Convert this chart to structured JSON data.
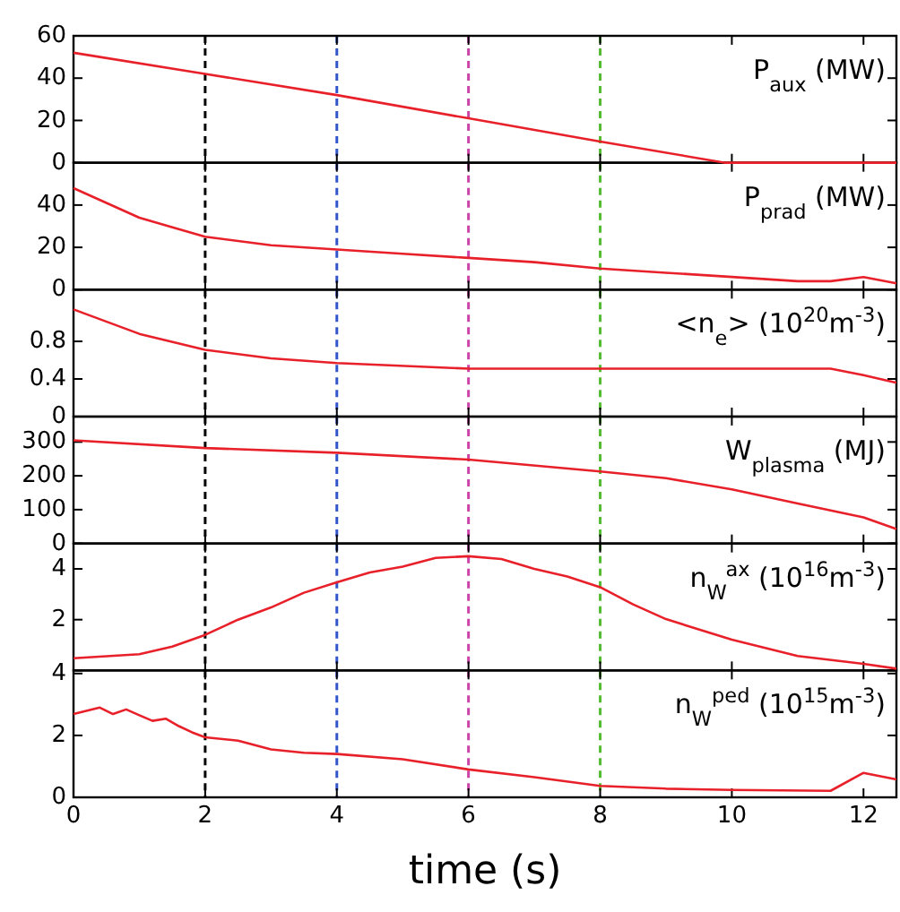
{
  "chart_data": [
    {
      "type": "line",
      "title": "P$_{aux}$ (MW)",
      "x": [
        0,
        2,
        4,
        6,
        8,
        9.9,
        12.5
      ],
      "series": [
        {
          "color": "#e8202a",
          "values": [
            52,
            42,
            32,
            21,
            10,
            0,
            0
          ]
        }
      ],
      "xlim": [
        0,
        12.5
      ],
      "xticks": [
        0,
        2,
        4,
        6,
        8,
        10,
        12
      ],
      "ylim": [
        0,
        60
      ],
      "yticks": [
        0,
        20,
        40,
        60
      ],
      "tick_labels": "y",
      "ref_lines": [
        {
          "axis": "x",
          "value": 2,
          "color": "#000000",
          "line_style": "dashed"
        },
        {
          "axis": "x",
          "value": 4,
          "color": "#3355cc",
          "line_style": "dashed"
        },
        {
          "axis": "x",
          "value": 6,
          "color": "#cc44aa",
          "line_style": "dashed"
        },
        {
          "axis": "x",
          "value": 8,
          "color": "#55bb33",
          "line_style": "dashed"
        }
      ]
    },
    {
      "type": "line",
      "title": "P$_{prad}$ (MW)",
      "x": [
        0,
        1,
        2,
        3,
        4,
        5,
        6,
        7,
        8,
        9,
        10,
        11,
        11.5,
        12,
        12.5
      ],
      "series": [
        {
          "color": "#e8202a",
          "values": [
            48,
            34,
            25,
            21,
            19,
            17,
            15,
            13,
            10,
            8,
            6,
            4,
            4,
            6,
            3
          ]
        }
      ],
      "xlim": [
        0,
        12.5
      ],
      "xticks": [
        0,
        2,
        4,
        6,
        8,
        10,
        12
      ],
      "ylim": [
        0,
        60
      ],
      "yticks": [
        0,
        20,
        40
      ],
      "tick_labels": "y",
      "ref_lines": [
        {
          "axis": "x",
          "value": 2,
          "color": "#000000",
          "line_style": "dashed"
        },
        {
          "axis": "x",
          "value": 4,
          "color": "#3355cc",
          "line_style": "dashed"
        },
        {
          "axis": "x",
          "value": 6,
          "color": "#cc44aa",
          "line_style": "dashed"
        },
        {
          "axis": "x",
          "value": 8,
          "color": "#55bb33",
          "line_style": "dashed"
        }
      ]
    },
    {
      "type": "line",
      "title": "<n$_{e}$> (10$^{20}$m$^{-3}$)",
      "x": [
        0,
        1,
        2,
        3,
        4,
        6,
        8,
        10,
        11.5,
        12,
        12.5
      ],
      "series": [
        {
          "color": "#e8202a",
          "values": [
            1.14,
            0.88,
            0.71,
            0.62,
            0.57,
            0.51,
            0.51,
            0.51,
            0.51,
            0.44,
            0.36
          ]
        }
      ],
      "xlim": [
        0,
        12.5
      ],
      "xticks": [
        0,
        2,
        4,
        6,
        8,
        10,
        12
      ],
      "ylim": [
        0,
        1.35
      ],
      "yticks": [
        0,
        0.4,
        0.8
      ],
      "tick_labels": "y",
      "ref_lines": [
        {
          "axis": "x",
          "value": 2,
          "color": "#000000",
          "line_style": "dashed"
        },
        {
          "axis": "x",
          "value": 4,
          "color": "#3355cc",
          "line_style": "dashed"
        },
        {
          "axis": "x",
          "value": 6,
          "color": "#cc44aa",
          "line_style": "dashed"
        },
        {
          "axis": "x",
          "value": 8,
          "color": "#55bb33",
          "line_style": "dashed"
        }
      ]
    },
    {
      "type": "line",
      "title": "W$_{plasma}$ (MJ)",
      "x": [
        0,
        2,
        4,
        6,
        8,
        9,
        10,
        11,
        12,
        12.5
      ],
      "series": [
        {
          "color": "#e8202a",
          "values": [
            305,
            282,
            268,
            248,
            213,
            193,
            160,
            118,
            77,
            43
          ]
        }
      ],
      "xlim": [
        0,
        12.5
      ],
      "xticks": [
        0,
        2,
        4,
        6,
        8,
        10,
        12
      ],
      "ylim": [
        0,
        375
      ],
      "yticks": [
        0,
        100,
        200,
        300
      ],
      "tick_labels": "y",
      "ref_lines": [
        {
          "axis": "x",
          "value": 2,
          "color": "#000000",
          "line_style": "dashed"
        },
        {
          "axis": "x",
          "value": 4,
          "color": "#3355cc",
          "line_style": "dashed"
        },
        {
          "axis": "x",
          "value": 6,
          "color": "#cc44aa",
          "line_style": "dashed"
        },
        {
          "axis": "x",
          "value": 8,
          "color": "#55bb33",
          "line_style": "dashed"
        }
      ]
    },
    {
      "type": "line",
      "title": "n$_{W}$$^{ax}$ (10$^{16}$m$^{-3}$)",
      "x": [
        0,
        1,
        1.5,
        2,
        2.5,
        3,
        3.5,
        4,
        4.5,
        5,
        5.5,
        6,
        6.5,
        7,
        7.5,
        8,
        8.5,
        9,
        10,
        11,
        12,
        12.5
      ],
      "series": [
        {
          "color": "#e8202a",
          "values": [
            0.48,
            0.64,
            0.94,
            1.4,
            2.0,
            2.48,
            3.06,
            3.47,
            3.86,
            4.09,
            4.43,
            4.5,
            4.39,
            4.0,
            3.7,
            3.28,
            2.6,
            2.02,
            1.21,
            0.57,
            0.26,
            0.07
          ]
        }
      ],
      "xlim": [
        0,
        12.5
      ],
      "xticks": [
        0,
        2,
        4,
        6,
        8,
        10,
        12
      ],
      "ylim": [
        0,
        5
      ],
      "yticks": [
        {
          "value": 0,
          "label": null
        },
        2,
        4
      ],
      "tick_labels": "y",
      "ref_lines": [
        {
          "axis": "x",
          "value": 2,
          "color": "#000000",
          "line_style": "dashed"
        },
        {
          "axis": "x",
          "value": 4,
          "color": "#3355cc",
          "line_style": "dashed"
        },
        {
          "axis": "x",
          "value": 6,
          "color": "#cc44aa",
          "line_style": "dashed"
        },
        {
          "axis": "x",
          "value": 8,
          "color": "#55bb33",
          "line_style": "dashed"
        }
      ]
    },
    {
      "type": "line",
      "title": "n$_{W}$$^{ped}$ (10$^{15}$m$^{-3}$)",
      "xlabel": "time (s)",
      "x": [
        0,
        0.4,
        0.6,
        0.8,
        1,
        1.2,
        1.4,
        1.6,
        1.8,
        2,
        2.5,
        3,
        3.5,
        4,
        5,
        6,
        7,
        8,
        9,
        10,
        11.5,
        12,
        12.5
      ],
      "series": [
        {
          "color": "#e8202a",
          "values": [
            2.69,
            2.9,
            2.69,
            2.84,
            2.65,
            2.47,
            2.54,
            2.3,
            2.1,
            1.94,
            1.83,
            1.55,
            1.44,
            1.4,
            1.23,
            0.9,
            0.65,
            0.37,
            0.28,
            0.24,
            0.21,
            0.79,
            0.58
          ]
        }
      ],
      "xlim": [
        0,
        12.5
      ],
      "xticks": [
        0,
        2,
        4,
        6,
        8,
        10,
        12
      ],
      "ylim": [
        0,
        4.1
      ],
      "yticks": [
        0,
        2,
        4
      ],
      "ref_lines": [
        {
          "axis": "x",
          "value": 2,
          "color": "#000000",
          "line_style": "dashed"
        },
        {
          "axis": "x",
          "value": 4,
          "color": "#3355cc",
          "line_style": "dashed"
        },
        {
          "axis": "x",
          "value": 6,
          "color": "#cc44aa",
          "line_style": "dashed"
        },
        {
          "axis": "x",
          "value": 8,
          "color": "#55bb33",
          "line_style": "dashed"
        }
      ]
    }
  ]
}
